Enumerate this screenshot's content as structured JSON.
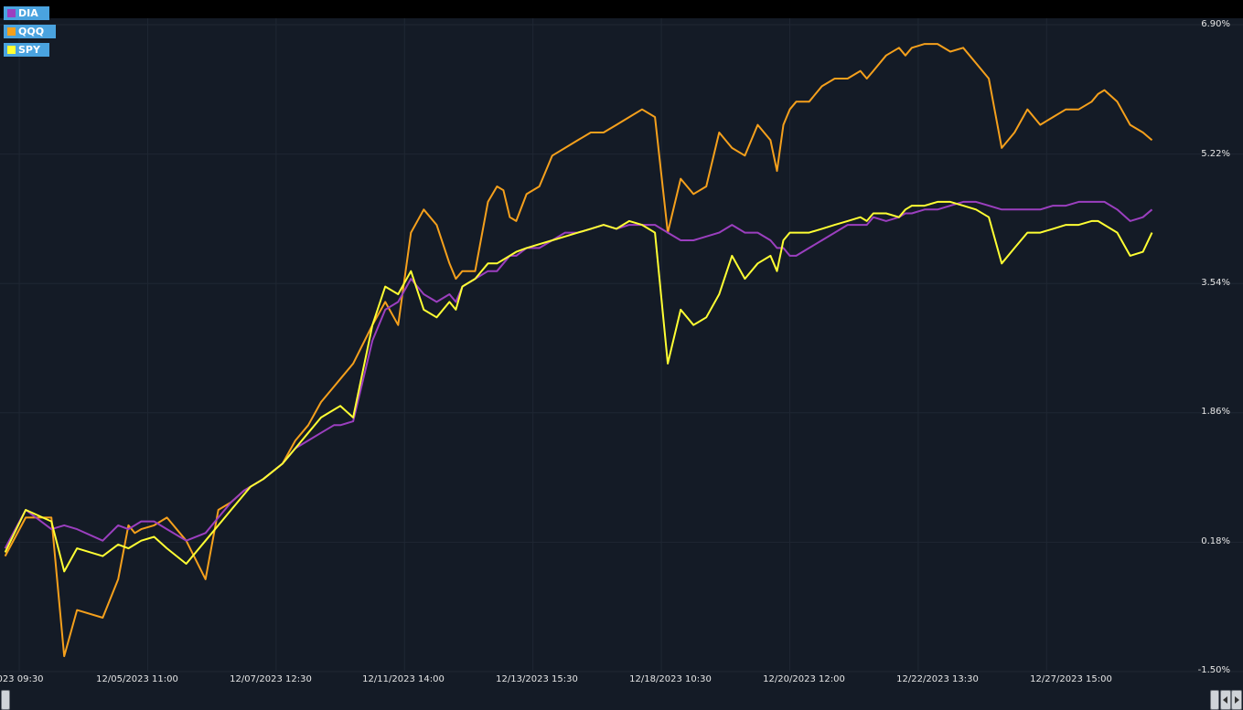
{
  "colors": {
    "background": "#141b26",
    "grid": "#1f2733",
    "DIA": "#9b3fbf",
    "QQQ": "#f5a01c",
    "SPY": "#ffff33",
    "legend_bg": "#4aa3df",
    "navigator_fill": "#22b02a"
  },
  "legend": [
    {
      "label": "DIA",
      "color": "#9b3fbf"
    },
    {
      "label": "QQQ",
      "color": "#f5a01c"
    },
    {
      "label": "SPY",
      "color": "#ffff33"
    }
  ],
  "chart_data": {
    "type": "line",
    "ytick_labels": [
      "6.90%",
      "5.22%",
      "3.54%",
      "1.86%",
      "0.18%",
      "-1.50%"
    ],
    "xtick_labels": [
      "023 09:30",
      "12/05/2023 11:00",
      "12/07/2023 12:30",
      "12/11/2023 14:00",
      "12/13/2023 15:30",
      "12/18/2023 10:30",
      "12/20/2023 12:00",
      "12/22/2023 13:30",
      "12/27/2023 15:00"
    ],
    "ylim": [
      -1.5,
      6.9
    ],
    "xlim": [
      0,
      9.33
    ],
    "grid": true,
    "legend_position": "top-left",
    "y_axis_position": "right",
    "series": [
      {
        "name": "QQQ",
        "x": [
          0.04,
          0.2,
          0.4,
          0.5,
          0.6,
          0.8,
          0.92,
          1.0,
          1.05,
          1.1,
          1.2,
          1.3,
          1.45,
          1.6,
          1.7,
          1.8,
          1.9,
          1.95,
          2.05,
          2.2,
          2.3,
          2.4,
          2.5,
          2.6,
          2.65,
          2.75,
          2.9,
          3.0,
          3.1,
          3.2,
          3.3,
          3.4,
          3.5,
          3.55,
          3.6,
          3.7,
          3.8,
          3.87,
          3.92,
          3.97,
          4.02,
          4.1,
          4.2,
          4.3,
          4.4,
          4.5,
          4.6,
          4.7,
          4.8,
          4.9,
          5.0,
          5.1,
          5.2,
          5.3,
          5.4,
          5.5,
          5.6,
          5.7,
          5.8,
          5.9,
          6.0,
          6.05,
          6.1,
          6.15,
          6.2,
          6.3,
          6.4,
          6.5,
          6.6,
          6.7,
          6.75,
          6.8,
          6.9,
          7.0,
          7.05,
          7.1,
          7.2,
          7.3,
          7.4,
          7.5,
          7.6,
          7.7,
          7.8,
          7.9,
          8.0,
          8.1,
          8.2,
          8.3,
          8.4,
          8.5,
          8.55,
          8.6,
          8.7,
          8.8,
          8.9,
          8.97
        ],
        "y": [
          0.0,
          0.5,
          0.5,
          -1.3,
          -0.7,
          -0.8,
          -0.3,
          0.4,
          0.3,
          0.35,
          0.4,
          0.5,
          0.2,
          -0.3,
          0.6,
          0.7,
          0.85,
          0.9,
          1.0,
          1.2,
          1.5,
          1.7,
          2.0,
          2.2,
          2.3,
          2.5,
          3.0,
          3.3,
          3.0,
          4.2,
          4.5,
          4.3,
          3.8,
          3.6,
          3.7,
          3.7,
          4.6,
          4.8,
          4.75,
          4.4,
          4.35,
          4.7,
          4.8,
          5.2,
          5.3,
          5.4,
          5.5,
          5.5,
          5.6,
          5.7,
          5.8,
          5.7,
          4.2,
          4.9,
          4.7,
          4.8,
          5.5,
          5.3,
          5.2,
          5.6,
          5.4,
          5.0,
          5.6,
          5.8,
          5.9,
          5.9,
          6.1,
          6.2,
          6.2,
          6.3,
          6.2,
          6.3,
          6.5,
          6.6,
          6.5,
          6.6,
          6.65,
          6.65,
          6.55,
          6.6,
          6.4,
          6.2,
          5.3,
          5.5,
          5.8,
          5.6,
          5.7,
          5.8,
          5.8,
          5.9,
          6.0,
          6.05,
          5.9,
          5.6,
          5.5,
          5.4
        ]
      },
      {
        "name": "DIA",
        "x": [
          0.04,
          0.2,
          0.4,
          0.5,
          0.6,
          0.8,
          0.92,
          1.0,
          1.05,
          1.1,
          1.2,
          1.3,
          1.45,
          1.6,
          1.7,
          1.8,
          1.9,
          1.95,
          2.05,
          2.2,
          2.3,
          2.4,
          2.5,
          2.6,
          2.65,
          2.75,
          2.9,
          3.0,
          3.1,
          3.2,
          3.3,
          3.4,
          3.5,
          3.55,
          3.6,
          3.7,
          3.8,
          3.87,
          3.92,
          3.97,
          4.02,
          4.1,
          4.2,
          4.3,
          4.4,
          4.5,
          4.6,
          4.7,
          4.8,
          4.9,
          5.0,
          5.1,
          5.2,
          5.3,
          5.4,
          5.5,
          5.6,
          5.7,
          5.8,
          5.9,
          6.0,
          6.05,
          6.1,
          6.15,
          6.2,
          6.3,
          6.4,
          6.5,
          6.6,
          6.7,
          6.75,
          6.8,
          6.9,
          7.0,
          7.05,
          7.1,
          7.2,
          7.3,
          7.4,
          7.5,
          7.6,
          7.7,
          7.8,
          7.9,
          8.0,
          8.1,
          8.2,
          8.3,
          8.4,
          8.5,
          8.55,
          8.6,
          8.7,
          8.8,
          8.9,
          8.97
        ],
        "y": [
          0.1,
          0.6,
          0.35,
          0.4,
          0.35,
          0.2,
          0.4,
          0.35,
          0.4,
          0.45,
          0.45,
          0.35,
          0.2,
          0.3,
          0.5,
          0.7,
          0.85,
          0.9,
          1.0,
          1.2,
          1.4,
          1.5,
          1.6,
          1.7,
          1.7,
          1.75,
          2.8,
          3.2,
          3.3,
          3.6,
          3.4,
          3.3,
          3.4,
          3.3,
          3.5,
          3.6,
          3.7,
          3.7,
          3.8,
          3.9,
          3.9,
          4.0,
          4.0,
          4.1,
          4.2,
          4.2,
          4.25,
          4.3,
          4.25,
          4.3,
          4.3,
          4.3,
          4.2,
          4.1,
          4.1,
          4.15,
          4.2,
          4.3,
          4.2,
          4.2,
          4.1,
          4.0,
          4.0,
          3.9,
          3.9,
          4.0,
          4.1,
          4.2,
          4.3,
          4.3,
          4.3,
          4.4,
          4.35,
          4.4,
          4.45,
          4.45,
          4.5,
          4.5,
          4.55,
          4.6,
          4.6,
          4.55,
          4.5,
          4.5,
          4.5,
          4.5,
          4.55,
          4.55,
          4.6,
          4.6,
          4.6,
          4.6,
          4.5,
          4.35,
          4.4,
          4.5
        ]
      },
      {
        "name": "SPY",
        "x": [
          0.04,
          0.2,
          0.4,
          0.5,
          0.6,
          0.8,
          0.92,
          1.0,
          1.05,
          1.1,
          1.2,
          1.3,
          1.45,
          1.6,
          1.7,
          1.8,
          1.9,
          1.95,
          2.05,
          2.2,
          2.3,
          2.4,
          2.5,
          2.6,
          2.65,
          2.75,
          2.9,
          3.0,
          3.1,
          3.2,
          3.3,
          3.4,
          3.5,
          3.55,
          3.6,
          3.7,
          3.8,
          3.87,
          3.92,
          3.97,
          4.02,
          4.1,
          4.2,
          4.3,
          4.4,
          4.5,
          4.6,
          4.7,
          4.8,
          4.9,
          5.0,
          5.1,
          5.2,
          5.3,
          5.4,
          5.5,
          5.6,
          5.7,
          5.8,
          5.9,
          6.0,
          6.05,
          6.1,
          6.15,
          6.2,
          6.3,
          6.4,
          6.5,
          6.6,
          6.7,
          6.75,
          6.8,
          6.9,
          7.0,
          7.05,
          7.1,
          7.2,
          7.3,
          7.4,
          7.5,
          7.6,
          7.7,
          7.8,
          7.9,
          8.0,
          8.1,
          8.2,
          8.3,
          8.4,
          8.5,
          8.55,
          8.6,
          8.7,
          8.8,
          8.9,
          8.97
        ],
        "y": [
          0.05,
          0.6,
          0.45,
          -0.2,
          0.1,
          0.0,
          0.15,
          0.1,
          0.15,
          0.2,
          0.25,
          0.1,
          -0.1,
          0.2,
          0.4,
          0.6,
          0.8,
          0.9,
          1.0,
          1.2,
          1.4,
          1.6,
          1.8,
          1.9,
          1.95,
          1.8,
          3.0,
          3.5,
          3.4,
          3.7,
          3.2,
          3.1,
          3.3,
          3.2,
          3.5,
          3.6,
          3.8,
          3.8,
          3.85,
          3.9,
          3.95,
          4.0,
          4.05,
          4.1,
          4.15,
          4.2,
          4.25,
          4.3,
          4.25,
          4.35,
          4.3,
          4.2,
          2.5,
          3.2,
          3.0,
          3.1,
          3.4,
          3.9,
          3.6,
          3.8,
          3.9,
          3.7,
          4.1,
          4.2,
          4.2,
          4.2,
          4.25,
          4.3,
          4.35,
          4.4,
          4.35,
          4.45,
          4.45,
          4.4,
          4.5,
          4.55,
          4.55,
          4.6,
          4.6,
          4.55,
          4.5,
          4.4,
          3.8,
          4.0,
          4.2,
          4.2,
          4.25,
          4.3,
          4.3,
          4.35,
          4.35,
          4.3,
          4.2,
          3.9,
          3.95,
          4.2
        ]
      }
    ]
  }
}
